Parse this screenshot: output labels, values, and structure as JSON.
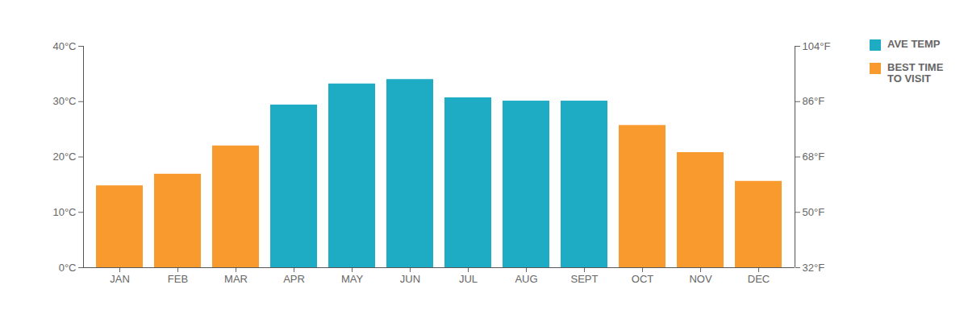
{
  "chart_data": {
    "type": "bar",
    "categories": [
      "JAN",
      "FEB",
      "MAR",
      "APR",
      "MAY",
      "JUN",
      "JUL",
      "AUG",
      "SEPT",
      "OCT",
      "NOV",
      "DEC"
    ],
    "series": [
      {
        "name": "AVE TEMP",
        "color": "#1eabc4",
        "values": [
          null,
          null,
          null,
          29.4,
          33.2,
          34.0,
          30.7,
          30.1,
          30.1,
          null,
          null,
          null
        ]
      },
      {
        "name": "BEST TIME TO VISIT",
        "color": "#f89a2e",
        "values": [
          14.8,
          16.9,
          22.0,
          null,
          null,
          null,
          null,
          null,
          null,
          25.7,
          20.8,
          15.6
        ]
      }
    ],
    "ylim": [
      0,
      40
    ],
    "yticks": [
      {
        "value": 0,
        "label": "0°C"
      },
      {
        "value": 10,
        "label": "10°C"
      },
      {
        "value": 20,
        "label": "20°C"
      },
      {
        "value": 30,
        "label": "30°C"
      },
      {
        "value": 40,
        "label": "40°C"
      }
    ],
    "y2lim": [
      32,
      104
    ],
    "y2ticks": [
      {
        "value": 32,
        "label": "32°F"
      },
      {
        "value": 50,
        "label": "50°F"
      },
      {
        "value": 68,
        "label": "68°F"
      },
      {
        "value": 86,
        "label": "86°F"
      },
      {
        "value": 104,
        "label": "104°F"
      }
    ],
    "legend": "right"
  }
}
